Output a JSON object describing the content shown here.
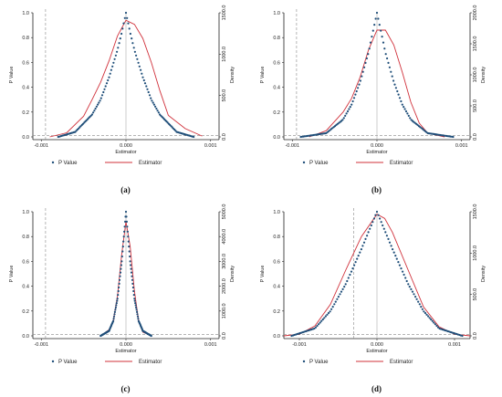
{
  "chart_data": [
    {
      "type": "line",
      "panel_label": "(a)",
      "xlabel": "Estimator",
      "ylabel_left": "P Value",
      "ylabel_right": "Density",
      "xlim": [
        -0.0011,
        0.0011
      ],
      "x_ticks": [
        "-0.001",
        "0.000",
        "0.001"
      ],
      "x_tick_values": [
        -0.001,
        0,
        0.001
      ],
      "ylim_left": [
        0,
        1
      ],
      "y_ticks_left": [
        "0.0",
        "0.2",
        "0.4",
        "0.6",
        "0.8",
        "1.0"
      ],
      "ylim_right": [
        0,
        1500
      ],
      "y_ticks_right": [
        "0.0",
        "500.0",
        "1000.0",
        "1500.0"
      ],
      "legend": [
        "P Value",
        "Estimator"
      ],
      "legend_position": "bottom",
      "reference_vline_x": -0.00095,
      "reference_hline_y": 0.01,
      "center_vline_x": 0,
      "series": [
        {
          "name": "P Value",
          "axis": "left",
          "style": "dots",
          "x": [
            -0.0008,
            -0.0006,
            -0.0004,
            -0.0003,
            -0.0002,
            -0.0001,
            -5e-05,
            0,
            5e-05,
            0.0001,
            0.0002,
            0.0003,
            0.0004,
            0.0006,
            0.0008
          ],
          "y": [
            0.0,
            0.04,
            0.18,
            0.3,
            0.48,
            0.7,
            0.84,
            1.0,
            0.84,
            0.7,
            0.48,
            0.3,
            0.18,
            0.04,
            0.0
          ]
        },
        {
          "name": "Estimator",
          "axis": "right",
          "style": "line",
          "x": [
            -0.0009,
            -0.0007,
            -0.0005,
            -0.0004,
            -0.0003,
            -0.0002,
            -0.0001,
            0,
            0.0001,
            0.0002,
            0.0003,
            0.0004,
            0.0005,
            0.0007,
            0.0009
          ],
          "y": [
            0,
            50,
            250,
            450,
            660,
            920,
            1220,
            1410,
            1360,
            1190,
            900,
            560,
            260,
            100,
            10
          ]
        }
      ]
    },
    {
      "type": "line",
      "panel_label": "(b)",
      "xlabel": "Estimator",
      "ylabel_left": "P Value",
      "ylabel_right": "Density",
      "xlim": [
        -0.0011,
        0.0011
      ],
      "x_ticks": [
        "-0.001",
        "0.000",
        "0.001"
      ],
      "x_tick_values": [
        -0.001,
        0,
        0.001
      ],
      "ylim_left": [
        0,
        1
      ],
      "y_ticks_left": [
        "0.0",
        "0.2",
        "0.4",
        "0.6",
        "0.8",
        "1.0"
      ],
      "ylim_right": [
        0,
        2000
      ],
      "y_ticks_right": [
        "0.0",
        "500.0",
        "1000.0",
        "1500.0",
        "2000.0"
      ],
      "legend": [
        "P Value",
        "Estimator"
      ],
      "legend_position": "bottom",
      "reference_vline_x": -0.00095,
      "reference_hline_y": 0.01,
      "center_vline_x": 0,
      "series": [
        {
          "name": "P Value",
          "axis": "left",
          "style": "dots",
          "x": [
            -0.0009,
            -0.0006,
            -0.0004,
            -0.0003,
            -0.0002,
            -0.0001,
            0,
            0.0001,
            0.0002,
            0.0003,
            0.0004,
            0.0006,
            0.0009
          ],
          "y": [
            0.0,
            0.03,
            0.14,
            0.26,
            0.44,
            0.68,
            1.0,
            0.68,
            0.44,
            0.26,
            0.14,
            0.03,
            0.0
          ]
        },
        {
          "name": "Estimator",
          "axis": "right",
          "style": "line",
          "x": [
            -0.0008,
            -0.0006,
            -0.0004,
            -0.0003,
            -0.0002,
            -0.0001,
            0,
            0.0001,
            0.0002,
            0.0003,
            0.0004,
            0.0005,
            0.0006,
            0.0008
          ],
          "y": [
            0,
            100,
            400,
            620,
            960,
            1400,
            1720,
            1720,
            1480,
            1040,
            560,
            220,
            60,
            0
          ]
        }
      ]
    },
    {
      "type": "line",
      "panel_label": "(c)",
      "xlabel": "Estimator",
      "ylabel_left": "P Value",
      "ylabel_right": "Density",
      "xlim": [
        -0.0011,
        0.0011
      ],
      "x_ticks": [
        "-0.001",
        "0.000",
        "0.001"
      ],
      "x_tick_values": [
        -0.001,
        0,
        0.001
      ],
      "ylim_left": [
        0,
        1
      ],
      "y_ticks_left": [
        "0.0",
        "0.2",
        "0.4",
        "0.6",
        "0.8",
        "1.0"
      ],
      "ylim_right": [
        0,
        5000
      ],
      "y_ticks_right": [
        "0.0",
        "1000.0",
        "2000.0",
        "3000.0",
        "4000.0",
        "5000.0"
      ],
      "legend": [
        "P Value",
        "Estimator"
      ],
      "legend_position": "bottom",
      "reference_vline_x": -0.00095,
      "reference_hline_y": 0.01,
      "center_vline_x": 0,
      "series": [
        {
          "name": "P Value",
          "axis": "left",
          "style": "dots",
          "x": [
            -0.0003,
            -0.0002,
            -0.00015,
            -0.0001,
            -5e-05,
            0,
            5e-05,
            0.0001,
            0.00015,
            0.0002,
            0.0003
          ],
          "y": [
            0.0,
            0.04,
            0.12,
            0.3,
            0.6,
            1.0,
            0.6,
            0.3,
            0.12,
            0.04,
            0.0
          ]
        },
        {
          "name": "Estimator",
          "axis": "right",
          "style": "line",
          "x": [
            -0.0003,
            -0.0002,
            -0.00015,
            -0.0001,
            -5e-05,
            0,
            5e-05,
            0.0001,
            0.00015,
            0.0002,
            0.0003
          ],
          "y": [
            0,
            250,
            600,
            1600,
            3300,
            4600,
            3600,
            1800,
            600,
            150,
            0
          ]
        }
      ]
    },
    {
      "type": "line",
      "panel_label": "(d)",
      "xlabel": "Estimator",
      "ylabel_left": "P Value",
      "ylabel_right": "Density",
      "xlim": [
        -0.0012,
        0.0012
      ],
      "x_ticks": [
        "-0.001",
        "0.000",
        "0.001"
      ],
      "x_tick_values": [
        -0.001,
        0,
        0.001
      ],
      "ylim_left": [
        0,
        1
      ],
      "y_ticks_left": [
        "0.0",
        "0.2",
        "0.4",
        "0.6",
        "0.8",
        "1.0"
      ],
      "ylim_right": [
        0,
        1500
      ],
      "y_ticks_right": [
        "0.0",
        "500.0",
        "1000.0",
        "1500.0"
      ],
      "legend": [
        "P Value",
        "Estimator"
      ],
      "legend_position": "bottom",
      "reference_vline_x": -0.0003,
      "reference_hline_y": 0.01,
      "center_vline_x": 0,
      "series": [
        {
          "name": "P Value",
          "axis": "left",
          "style": "dots",
          "x": [
            -0.0011,
            -0.0008,
            -0.0006,
            -0.0004,
            -0.0003,
            -0.0002,
            -0.0001,
            0,
            0.0001,
            0.0002,
            0.0003,
            0.0004,
            0.0006,
            0.0008,
            0.0011
          ],
          "y": [
            0.0,
            0.06,
            0.2,
            0.42,
            0.56,
            0.7,
            0.85,
            1.0,
            0.85,
            0.7,
            0.56,
            0.42,
            0.2,
            0.06,
            0.0
          ]
        },
        {
          "name": "Estimator",
          "axis": "right",
          "style": "line",
          "x": [
            -0.0012,
            -0.001,
            -0.0008,
            -0.0006,
            -0.0004,
            -0.0002,
            0,
            0.0001,
            0.0002,
            0.0004,
            0.0006,
            0.0008,
            0.001,
            0.0012
          ],
          "y": [
            0,
            20,
            120,
            380,
            800,
            1200,
            1470,
            1420,
            1250,
            800,
            350,
            110,
            20,
            0
          ]
        }
      ]
    }
  ],
  "colors": {
    "pvalue": "#1f4e79",
    "estimator": "#d0303a",
    "reference": "#888888",
    "axis": "#222222"
  }
}
